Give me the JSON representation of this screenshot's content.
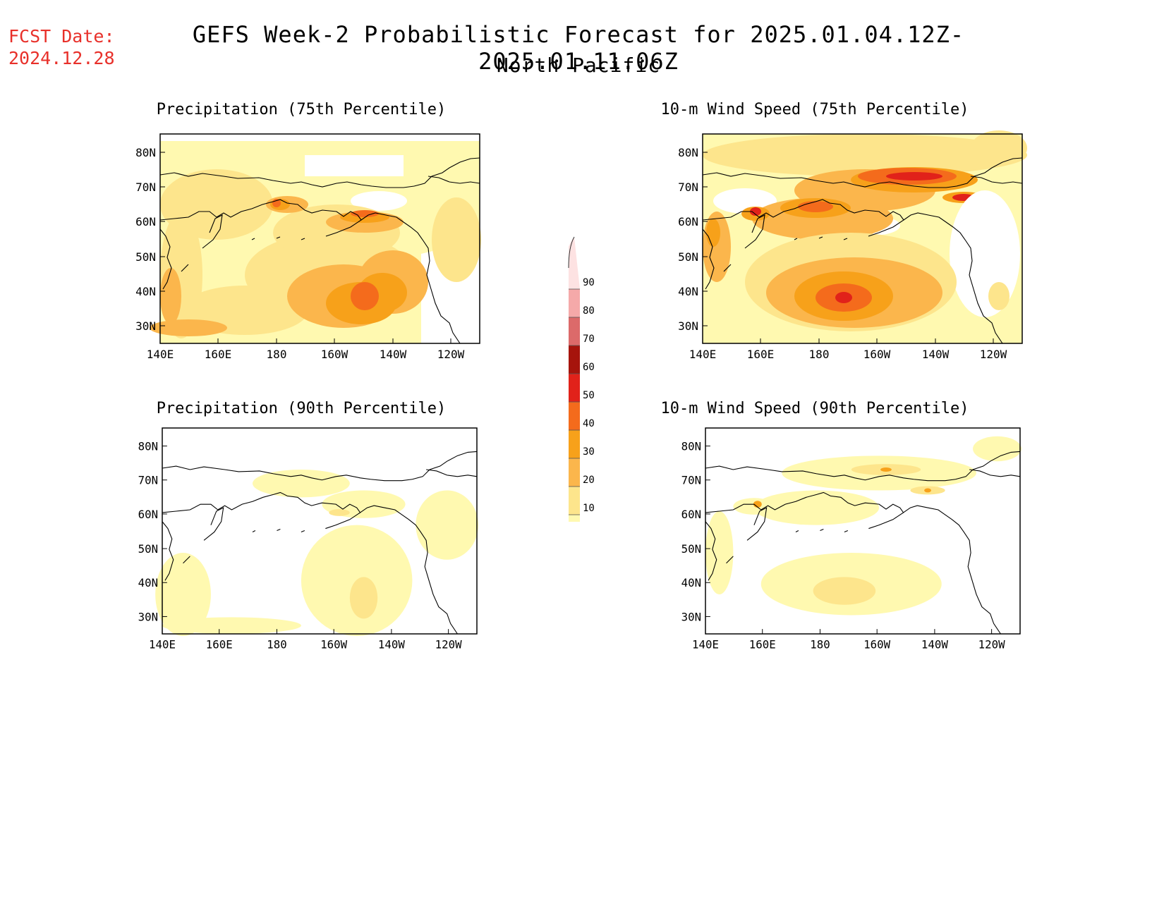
{
  "header": {
    "fcst_label": "FCST Date:",
    "fcst_date": "2024.12.28",
    "title": "GEFS Week-2 Probabilistic Forecast for 2025.01.04.12Z-2025.01.11.06Z",
    "region": "North Pacific"
  },
  "palette": {
    "10": "#fff9b0",
    "20": "#fde58c",
    "30": "#fbb64c",
    "40": "#f7a11a",
    "50": "#f46b1c",
    "60": "#e1221a",
    "70": "#a6140c",
    "80": "#dc6a6a",
    "90": "#f5a9a9",
    "100": "#fde2e2"
  },
  "axes": {
    "lon_ticks": [
      "140E",
      "160E",
      "180",
      "160W",
      "140W",
      "120W"
    ],
    "lat_ticks": [
      "80N",
      "70N",
      "60N",
      "50N",
      "40N",
      "30N"
    ]
  },
  "panels": [
    {
      "id": "precip75",
      "title": "Precipitation (75th Percentile)"
    },
    {
      "id": "wind75",
      "title": "10-m Wind Speed (75th Percentile)"
    },
    {
      "id": "precip90",
      "title": "Precipitation (90th Percentile)"
    },
    {
      "id": "wind90",
      "title": "10-m Wind Speed (90th Percentile)"
    }
  ],
  "colorbar": {
    "labels": [
      "90",
      "80",
      "70",
      "60",
      "50",
      "40",
      "30",
      "20",
      "10"
    ],
    "colors": [
      "#fde2e2",
      "#f5a9a9",
      "#dc6a6a",
      "#a6140c",
      "#e1221a",
      "#f46b1c",
      "#f7a11a",
      "#fbb64c",
      "#fde58c",
      "#fff9b0"
    ]
  }
}
